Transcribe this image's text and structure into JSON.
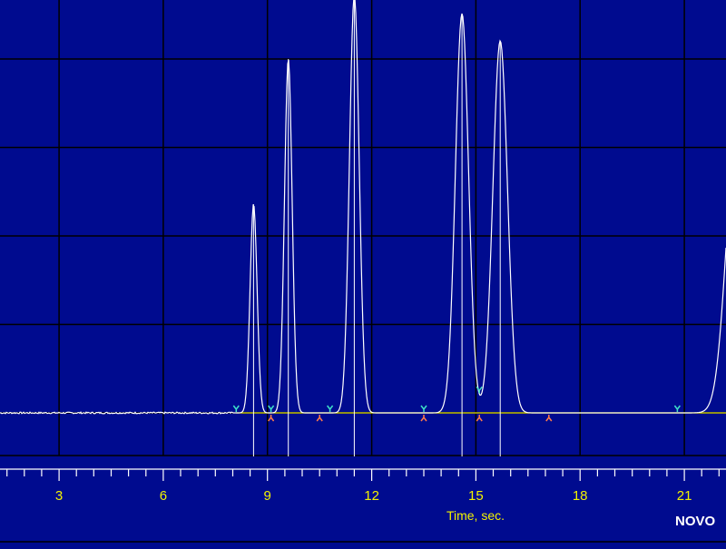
{
  "chart_data": {
    "type": "line",
    "title": "",
    "xlabel": "Time, sec.",
    "ylabel": "",
    "xlim": [
      1.3,
      22.2
    ],
    "ylim": [
      -9.4,
      88
    ],
    "grid": true,
    "x_ticks": [
      3,
      6,
      9,
      12,
      15,
      18,
      21
    ],
    "x_tick_labels": [
      "3",
      "6",
      "9",
      "12",
      "15",
      "18",
      "21"
    ],
    "baseline": 0,
    "series": [
      {
        "peaks": [
          {
            "rt": 8.6,
            "height": 46,
            "width": 0.1
          },
          {
            "rt": 9.6,
            "height": 78,
            "width": 0.11
          },
          {
            "rt": 11.5,
            "height": 92,
            "width": 0.14
          },
          {
            "rt": 14.6,
            "height": 88,
            "width": 0.19
          },
          {
            "rt": 15.7,
            "height": 82,
            "width": 0.21
          },
          {
            "rt": 22.5,
            "height": 60,
            "width": 0.3
          }
        ]
      }
    ],
    "peak_markers": {
      "start_color": "#3ee0c8",
      "end_color": "#ff7b4a",
      "starts": [
        8.1,
        9.1,
        10.8,
        13.5,
        15.1,
        20.8
      ],
      "ends": [
        9.1,
        10.5,
        13.5,
        15.1,
        17.1
      ]
    },
    "colors": {
      "background": "#000b8f",
      "grid": "#000000",
      "trace": "#ffffff",
      "baseline": "#e8e800",
      "text": "#f2f200"
    }
  },
  "brand": {
    "text": "NOVO"
  }
}
